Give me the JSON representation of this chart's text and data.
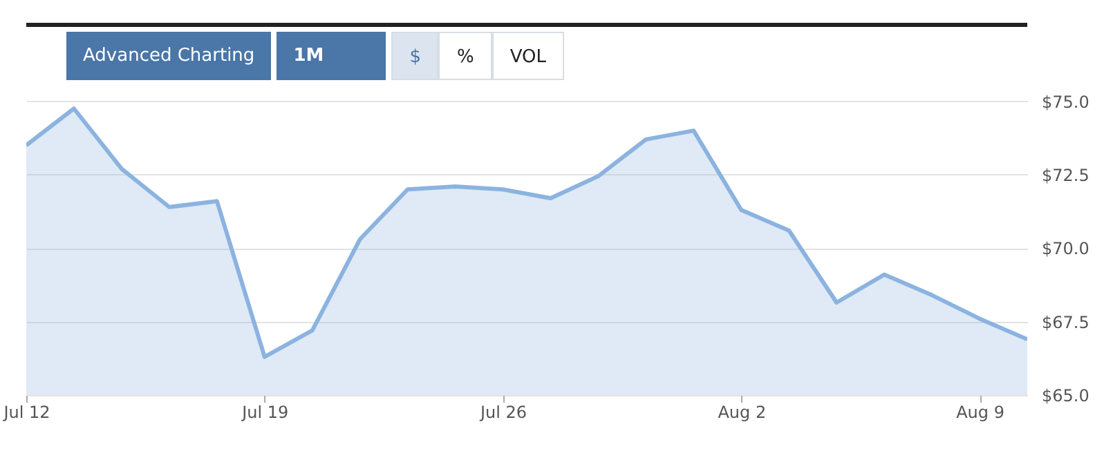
{
  "chart_data": {
    "type": "area",
    "categories": [
      "Jul 12",
      null,
      null,
      null,
      null,
      "Jul 19",
      null,
      null,
      null,
      null,
      "Jul 26",
      null,
      null,
      null,
      null,
      "Aug 2",
      null,
      null,
      null,
      null,
      "Aug 9",
      null
    ],
    "series": [
      {
        "color": "#8cb3e0",
        "values": [
          73.5,
          74.75,
          72.7,
          71.4,
          71.6,
          66.3,
          67.2,
          70.3,
          72.0,
          72.1,
          72.0,
          71.7,
          72.45,
          73.7,
          74.0,
          71.3,
          70.6,
          68.15,
          69.1,
          68.4,
          67.6,
          66.9
        ]
      }
    ],
    "ylim": [
      65,
      77.6
    ],
    "yticks": [
      {
        "value": 65,
        "label": "$65.0"
      },
      {
        "value": 67.5,
        "label": "$67.5"
      },
      {
        "value": 70,
        "label": "$70.0"
      },
      {
        "value": 72.5,
        "label": "$72.5"
      },
      {
        "value": 75,
        "label": "$75.0"
      }
    ],
    "grid": "y",
    "annotations": [
      "Advanced Charting",
      "1M",
      "$",
      "%",
      "VOL"
    ]
  }
}
